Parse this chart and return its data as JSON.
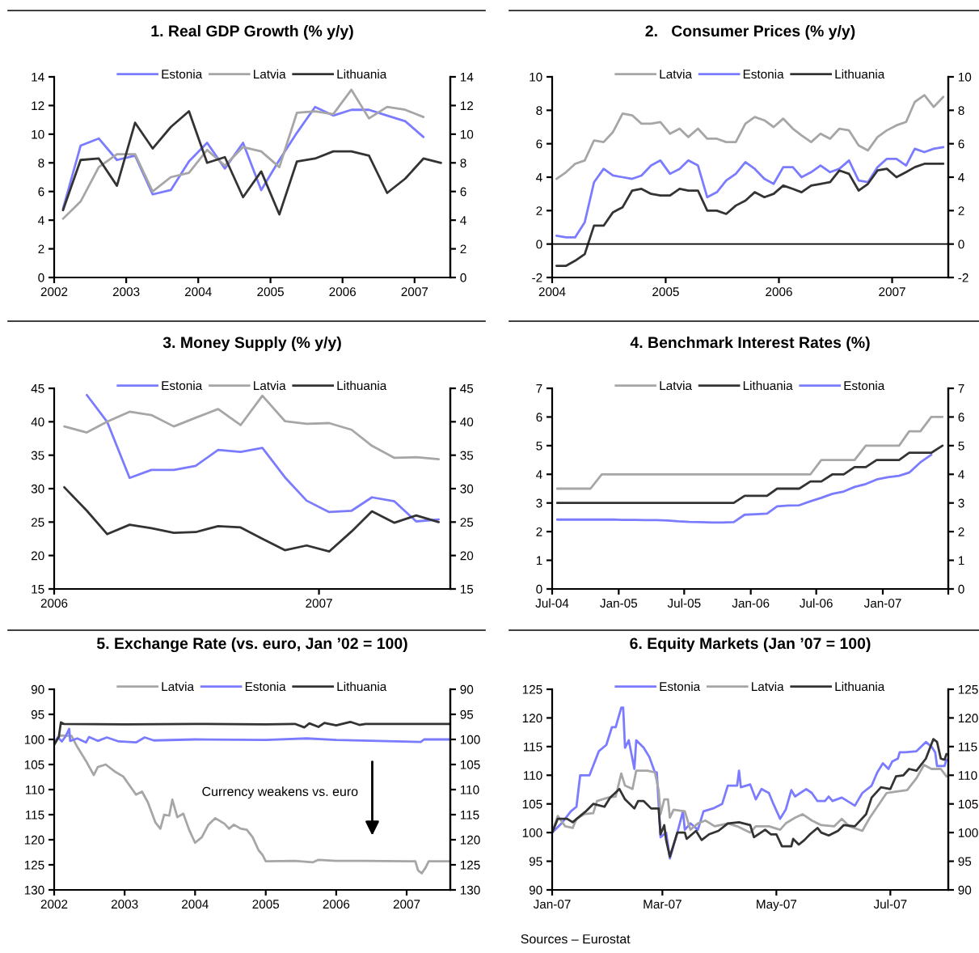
{
  "chart_data": [
    {
      "type": "line",
      "title": "1. Real GDP Growth (% y/y)",
      "x": [
        "2002-02-15",
        "2002-05-15",
        "2002-08-15",
        "2002-11-15",
        "2003-02-15",
        "2003-05-15",
        "2003-08-15",
        "2003-11-15",
        "2004-02-15",
        "2004-05-15",
        "2004-08-15",
        "2004-11-15",
        "2005-02-15",
        "2005-05-15",
        "2005-08-15",
        "2005-11-15",
        "2006-02-15",
        "2006-05-15",
        "2006-08-15",
        "2006-11-15",
        "2007-02-15",
        "2007-05-15"
      ],
      "series": [
        {
          "name": "Estonia",
          "color": "#7b7bff",
          "values": [
            4.8,
            9.2,
            9.7,
            8.2,
            8.5,
            5.8,
            6.1,
            8.1,
            9.4,
            7.6,
            9.4,
            6.1,
            8.2,
            10.1,
            11.9,
            11.3,
            11.7,
            11.7,
            11.3,
            10.9,
            9.8,
            null
          ]
        },
        {
          "name": "Latvia",
          "color": "#a6a6a6",
          "values": [
            4.1,
            5.3,
            7.7,
            8.6,
            8.6,
            6.0,
            7.0,
            7.3,
            8.9,
            7.8,
            9.1,
            8.8,
            7.7,
            11.5,
            11.6,
            11.4,
            13.1,
            11.1,
            11.9,
            11.7,
            11.2,
            null
          ]
        },
        {
          "name": "Lithuania",
          "color": "#333333",
          "values": [
            4.7,
            8.2,
            8.3,
            6.4,
            10.8,
            9.0,
            10.5,
            11.6,
            8.0,
            8.4,
            5.6,
            7.4,
            4.4,
            8.1,
            8.3,
            8.8,
            8.8,
            8.5,
            5.9,
            6.9,
            8.3,
            8.0
          ]
        }
      ],
      "xlim": [
        "2002-01-01",
        "2007-07-01"
      ],
      "xticks": [
        {
          "value": "2002-01-01",
          "label": "2002"
        },
        {
          "value": "2003-01-01",
          "label": "2003"
        },
        {
          "value": "2004-01-01",
          "label": "2004"
        },
        {
          "value": "2005-01-01",
          "label": "2005"
        },
        {
          "value": "2006-01-01",
          "label": "2006"
        },
        {
          "value": "2007-01-01",
          "label": "2007"
        }
      ],
      "ylim": [
        0,
        14
      ],
      "yticks": [
        0,
        2,
        4,
        6,
        8,
        10,
        12,
        14
      ],
      "y2lim": [
        0,
        14
      ],
      "y2ticks": [
        0,
        2,
        4,
        6,
        8,
        10,
        12,
        14
      ],
      "legend": "top"
    },
    {
      "type": "line",
      "title": "2.   Consumer Prices (% y/y)",
      "x": [
        "2004-01-15",
        "2004-02-15",
        "2004-03-15",
        "2004-04-15",
        "2004-05-15",
        "2004-06-15",
        "2004-07-15",
        "2004-08-15",
        "2004-09-15",
        "2004-10-15",
        "2004-11-15",
        "2004-12-15",
        "2005-01-15",
        "2005-02-15",
        "2005-03-15",
        "2005-04-15",
        "2005-05-15",
        "2005-06-15",
        "2005-07-15",
        "2005-08-15",
        "2005-09-15",
        "2005-10-15",
        "2005-11-15",
        "2005-12-15",
        "2006-01-15",
        "2006-02-15",
        "2006-03-15",
        "2006-04-15",
        "2006-05-15",
        "2006-06-15",
        "2006-07-15",
        "2006-08-15",
        "2006-09-15",
        "2006-10-15",
        "2006-11-15",
        "2006-12-15",
        "2007-01-15",
        "2007-02-15",
        "2007-03-15",
        "2007-04-15",
        "2007-05-15",
        "2007-06-15"
      ],
      "series": [
        {
          "name": "Latvia",
          "color": "#a6a6a6",
          "values": [
            3.9,
            4.3,
            4.8,
            5.0,
            6.2,
            6.1,
            6.7,
            7.8,
            7.7,
            7.2,
            7.2,
            7.3,
            6.6,
            6.9,
            6.4,
            6.9,
            6.3,
            6.3,
            6.1,
            6.1,
            7.2,
            7.6,
            7.4,
            7.0,
            7.5,
            6.9,
            6.5,
            6.1,
            6.6,
            6.3,
            6.9,
            6.8,
            5.9,
            5.6,
            6.4,
            6.8,
            7.1,
            7.3,
            8.5,
            8.9,
            8.2,
            8.8
          ]
        },
        {
          "name": "Estonia",
          "color": "#7b7bff",
          "values": [
            0.5,
            0.4,
            0.4,
            1.3,
            3.7,
            4.5,
            4.1,
            4.0,
            3.9,
            4.1,
            4.7,
            5.0,
            4.2,
            4.5,
            5.0,
            4.7,
            2.8,
            3.1,
            3.8,
            4.2,
            4.9,
            4.5,
            3.9,
            3.6,
            4.6,
            4.6,
            4.0,
            4.3,
            4.7,
            4.3,
            4.5,
            5.0,
            3.8,
            3.7,
            4.6,
            5.1,
            5.1,
            4.7,
            5.7,
            5.5,
            5.7,
            5.8
          ]
        },
        {
          "name": "Lithuania",
          "color": "#333333",
          "values": [
            -1.3,
            -1.3,
            -1.0,
            -0.6,
            1.1,
            1.1,
            1.9,
            2.2,
            3.2,
            3.3,
            3.0,
            2.9,
            2.9,
            3.3,
            3.2,
            3.2,
            2.0,
            2.0,
            1.8,
            2.3,
            2.6,
            3.1,
            2.8,
            3.0,
            3.5,
            3.3,
            3.1,
            3.5,
            3.6,
            3.7,
            4.4,
            4.2,
            3.2,
            3.6,
            4.4,
            4.5,
            4.0,
            4.3,
            4.6,
            4.8,
            4.8,
            4.8
          ]
        }
      ],
      "xlim": [
        "2004-01-01",
        "2007-07-01"
      ],
      "xticks": [
        {
          "value": "2004-01-01",
          "label": "2004"
        },
        {
          "value": "2005-01-01",
          "label": "2005"
        },
        {
          "value": "2006-01-01",
          "label": "2006"
        },
        {
          "value": "2007-01-01",
          "label": "2007"
        }
      ],
      "ylim": [
        -2,
        10
      ],
      "yticks": [
        -2,
        0,
        2,
        4,
        6,
        8,
        10
      ],
      "y2lim": [
        -2,
        10
      ],
      "y2ticks": [
        -2,
        0,
        2,
        4,
        6,
        8,
        10
      ],
      "legend": "top",
      "ref_lines": [
        {
          "axis": "y",
          "value": 0,
          "color": "#000000"
        }
      ]
    },
    {
      "type": "line",
      "title": "3. Money Supply (% y/y)",
      "x": [
        "2006-01-15",
        "2006-02-15",
        "2006-03-15",
        "2006-04-15",
        "2006-05-15",
        "2006-06-15",
        "2006-07-15",
        "2006-08-15",
        "2006-09-15",
        "2006-10-15",
        "2006-11-15",
        "2006-12-15",
        "2007-01-15",
        "2007-02-15",
        "2007-03-15",
        "2007-04-15",
        "2007-05-15",
        "2007-06-15"
      ],
      "series": [
        {
          "name": "Estonia",
          "color": "#7b7bff",
          "values": [
            null,
            44.0,
            40.0,
            31.6,
            32.8,
            32.8,
            33.4,
            35.8,
            35.5,
            36.1,
            31.7,
            28.2,
            26.5,
            26.7,
            28.7,
            28.1,
            25.1,
            25.4
          ]
        },
        {
          "name": "Latvia",
          "color": "#a6a6a6",
          "values": [
            39.3,
            38.4,
            40.0,
            41.5,
            41.0,
            39.3,
            40.6,
            41.9,
            39.5,
            43.9,
            40.1,
            39.7,
            39.8,
            38.8,
            36.4,
            34.6,
            34.7,
            34.4
          ]
        },
        {
          "name": "Lithuania",
          "color": "#333333",
          "values": [
            30.2,
            26.7,
            23.2,
            24.6,
            24.1,
            23.4,
            23.5,
            24.4,
            24.2,
            22.5,
            20.8,
            21.5,
            20.6,
            23.6,
            26.6,
            24.9,
            26.0,
            25.0
          ]
        }
      ],
      "xlim": [
        "2006-01-01",
        "2007-07-01"
      ],
      "xticks": [
        {
          "value": "2006-01-01",
          "label": "2006"
        },
        {
          "value": "2007-01-01",
          "label": "2007"
        }
      ],
      "ylim": [
        15,
        45
      ],
      "yticks": [
        15,
        20,
        25,
        30,
        35,
        40,
        45
      ],
      "y2lim": [
        15,
        45
      ],
      "y2ticks": [
        15,
        20,
        25,
        30,
        35,
        40,
        45
      ],
      "legend": "top"
    },
    {
      "type": "line",
      "title": "4. Benchmark Interest Rates (%)",
      "x": [
        "2004-07-15",
        "2004-08-15",
        "2004-09-15",
        "2004-10-15",
        "2004-11-15",
        "2004-12-15",
        "2005-01-15",
        "2005-02-15",
        "2005-03-15",
        "2005-04-15",
        "2005-05-15",
        "2005-06-15",
        "2005-07-15",
        "2005-08-15",
        "2005-09-15",
        "2005-10-15",
        "2005-11-15",
        "2005-12-15",
        "2006-01-15",
        "2006-02-15",
        "2006-03-15",
        "2006-04-15",
        "2006-05-15",
        "2006-06-15",
        "2006-07-15",
        "2006-08-15",
        "2006-09-15",
        "2006-10-15",
        "2006-11-15",
        "2006-12-15",
        "2007-01-15",
        "2007-02-15",
        "2007-03-15",
        "2007-04-15",
        "2007-05-15",
        "2007-06-15"
      ],
      "series": [
        {
          "name": "Latvia",
          "color": "#a6a6a6",
          "values": [
            3.5,
            3.5,
            3.5,
            3.5,
            4.0,
            4.0,
            4.0,
            4.0,
            4.0,
            4.0,
            4.0,
            4.0,
            4.0,
            4.0,
            4.0,
            4.0,
            4.0,
            4.0,
            4.0,
            4.0,
            4.0,
            4.0,
            4.0,
            4.0,
            4.5,
            4.5,
            4.5,
            4.5,
            5.0,
            5.0,
            5.0,
            5.0,
            5.5,
            5.5,
            6.0,
            6.0
          ]
        },
        {
          "name": "Lithuania",
          "color": "#333333",
          "values": [
            3.0,
            3.0,
            3.0,
            3.0,
            3.0,
            3.0,
            3.0,
            3.0,
            3.0,
            3.0,
            3.0,
            3.0,
            3.0,
            3.0,
            3.0,
            3.0,
            3.0,
            3.25,
            3.25,
            3.25,
            3.5,
            3.5,
            3.5,
            3.75,
            3.75,
            4.0,
            4.0,
            4.25,
            4.25,
            4.5,
            4.5,
            4.5,
            4.75,
            4.75,
            4.75,
            5.0
          ]
        },
        {
          "name": "Estonia",
          "color": "#7b7bff",
          "values": [
            2.42,
            2.42,
            2.42,
            2.42,
            2.42,
            2.42,
            2.41,
            2.41,
            2.4,
            2.4,
            2.39,
            2.36,
            2.34,
            2.33,
            2.32,
            2.32,
            2.33,
            2.59,
            2.61,
            2.63,
            2.88,
            2.91,
            2.92,
            3.06,
            3.18,
            3.32,
            3.4,
            3.56,
            3.66,
            3.82,
            3.9,
            3.95,
            4.06,
            4.42,
            4.68,
            null
          ]
        }
      ],
      "xlim": [
        "2004-07-01",
        "2007-07-01"
      ],
      "xticks": [
        {
          "value": "2004-07-01",
          "label": "Jul-04"
        },
        {
          "value": "2005-01-01",
          "label": "Jan-05"
        },
        {
          "value": "2005-07-01",
          "label": "Jul-05"
        },
        {
          "value": "2006-01-01",
          "label": "Jan-06"
        },
        {
          "value": "2006-07-01",
          "label": "Jul-06"
        },
        {
          "value": "2007-01-01",
          "label": "Jan-07"
        },
        {
          "value": "2007-07-01",
          "label": null
        }
      ],
      "ylim": [
        0,
        7
      ],
      "yticks": [
        0,
        1,
        2,
        3,
        4,
        5,
        6,
        7
      ],
      "y2lim": [
        0,
        7
      ],
      "y2ticks": [
        0,
        1,
        2,
        3,
        4,
        5,
        6,
        7
      ],
      "legend": "top"
    },
    {
      "type": "line",
      "title": "5. Exchange Rate (vs. euro, Jan ’02 = 100)",
      "series": [
        {
          "name": "Latvia",
          "color": "#a6a6a6",
          "x": [
            "2002-01-02",
            "2002-02-01",
            "2002-04-01",
            "2002-05-01",
            "2002-06-15",
            "2002-07-25",
            "2002-08-15",
            "2002-09-25",
            "2002-11-15",
            "2002-12-25",
            "2003-03-01",
            "2003-04-01",
            "2003-05-01",
            "2003-06-10",
            "2003-07-05",
            "2003-07-25",
            "2003-08-20",
            "2003-09-05",
            "2003-10-01",
            "2003-11-01",
            "2003-12-01",
            "2004-01-01",
            "2004-02-05",
            "2004-03-10",
            "2004-04-15",
            "2004-06-01",
            "2004-06-25",
            "2004-07-20",
            "2004-08-25",
            "2004-09-25",
            "2004-10-25",
            "2004-11-25",
            "2004-12-15",
            "2005-01-01",
            "2005-06-01",
            "2005-09-01",
            "2005-10-01",
            "2006-01-01",
            "2006-06-01",
            "2007-01-01",
            "2007-02-15",
            "2007-03-01",
            "2007-03-20",
            "2007-04-10",
            "2007-04-25",
            "2007-08-15"
          ],
          "values": [
            100.5,
            99.2,
            99.3,
            101.5,
            104.3,
            107.1,
            105.5,
            105.0,
            106.5,
            107.4,
            111.0,
            110.4,
            112.5,
            116.6,
            117.8,
            115.0,
            115.2,
            112.0,
            115.5,
            114.8,
            118.0,
            120.6,
            119.5,
            117.0,
            115.7,
            116.8,
            117.8,
            117.0,
            117.8,
            118.0,
            119.5,
            122.1,
            123.0,
            124.3,
            124.2,
            124.5,
            124.0,
            124.2,
            124.2,
            124.3,
            124.3,
            126.1,
            126.7,
            125.5,
            124.3,
            124.3
          ]
        },
        {
          "name": "Estonia",
          "color": "#7b7bff",
          "x": [
            "2002-01-02",
            "2002-01-20",
            "2002-02-10",
            "2002-03-01",
            "2002-03-20",
            "2002-03-25",
            "2002-05-01",
            "2002-06-15",
            "2002-07-01",
            "2002-08-15",
            "2002-10-01",
            "2002-12-01",
            "2003-03-01",
            "2003-04-15",
            "2003-06-01",
            "2004-01-01",
            "2005-01-01",
            "2005-08-01",
            "2006-01-01",
            "2007-03-15",
            "2007-04-01",
            "2007-08-15"
          ],
          "values": [
            100.8,
            99.6,
            100.4,
            99.4,
            97.9,
            100.3,
            99.8,
            100.6,
            99.5,
            100.3,
            99.6,
            100.4,
            100.6,
            99.6,
            100.2,
            100.0,
            100.1,
            99.8,
            100.1,
            100.5,
            100.0,
            100.0
          ]
        },
        {
          "name": "Lithuania",
          "color": "#333333",
          "x": [
            "2002-01-02",
            "2002-01-25",
            "2002-02-05",
            "2002-02-20",
            "2003-01-01",
            "2004-01-01",
            "2005-01-01",
            "2005-06-01",
            "2005-07-20",
            "2005-08-15",
            "2005-10-01",
            "2005-11-01",
            "2006-01-01",
            "2006-03-15",
            "2006-05-01",
            "2006-06-01",
            "2007-08-15"
          ],
          "values": [
            101.0,
            99.5,
            96.6,
            96.9,
            97.0,
            96.9,
            97.0,
            96.9,
            97.6,
            96.8,
            97.5,
            96.7,
            97.2,
            96.5,
            97.1,
            96.9,
            96.9
          ]
        }
      ],
      "xlim": [
        "2002-01-01",
        "2007-08-15"
      ],
      "xticks": [
        {
          "value": "2002-01-01",
          "label": "2002"
        },
        {
          "value": "2003-01-01",
          "label": "2003"
        },
        {
          "value": "2004-01-01",
          "label": "2004"
        },
        {
          "value": "2005-01-01",
          "label": "2005"
        },
        {
          "value": "2006-01-01",
          "label": "2006"
        },
        {
          "value": "2007-01-01",
          "label": "2007"
        }
      ],
      "ylim": [
        130,
        90
      ],
      "yticks": [
        90,
        95,
        100,
        105,
        110,
        115,
        120,
        125,
        130
      ],
      "y2lim": [
        130,
        90
      ],
      "y2ticks": [
        90,
        95,
        100,
        105,
        110,
        115,
        120,
        125,
        130
      ],
      "legend": "top",
      "annotations": [
        "Currency weakens vs. euro"
      ]
    },
    {
      "type": "line",
      "title": "6. Equity Markets (Jan ’07 = 100)",
      "series": [
        {
          "name": "Estonia",
          "color": "#7b7bff",
          "x": [
            "2007-01-01",
            "2007-01-06",
            "2007-01-11",
            "2007-01-14",
            "2007-01-16",
            "2007-01-21",
            "2007-01-26",
            "2007-01-30",
            "2007-02-02",
            "2007-02-04",
            "2007-02-07",
            "2007-02-08",
            "2007-02-09",
            "2007-02-11",
            "2007-02-14",
            "2007-02-15",
            "2007-02-19",
            "2007-02-22",
            "2007-02-25",
            "2007-02-26",
            "2007-02-28",
            "2007-03-03",
            "2007-03-05",
            "2007-03-09",
            "2007-03-12",
            "2007-03-13",
            "2007-03-16",
            "2007-03-20",
            "2007-03-23",
            "2007-03-28",
            "2007-04-02",
            "2007-04-05",
            "2007-04-10",
            "2007-04-11",
            "2007-04-12",
            "2007-04-17",
            "2007-04-20",
            "2007-04-23",
            "2007-04-27",
            "2007-04-29",
            "2007-05-03",
            "2007-05-06",
            "2007-05-09",
            "2007-05-11",
            "2007-05-17",
            "2007-05-20",
            "2007-05-23",
            "2007-05-27",
            "2007-05-29",
            "2007-05-31",
            "2007-06-05",
            "2007-06-08",
            "2007-06-12",
            "2007-06-16",
            "2007-06-21",
            "2007-06-24",
            "2007-06-27",
            "2007-06-30",
            "2007-07-02",
            "2007-07-05",
            "2007-07-06",
            "2007-07-09",
            "2007-07-15",
            "2007-07-20",
            "2007-07-23",
            "2007-07-25",
            "2007-07-26",
            "2007-07-30",
            "2007-07-31"
          ],
          "values": [
            100,
            101.6,
            103.7,
            104.5,
            110.0,
            110.0,
            114.2,
            115.3,
            118.4,
            118.4,
            121.8,
            121.8,
            114.8,
            116.1,
            111.1,
            116.1,
            114.8,
            113.2,
            110.5,
            110.5,
            99.2,
            100.0,
            95.5,
            100.0,
            103.7,
            100.5,
            101.6,
            100.5,
            103.7,
            104.2,
            105.0,
            108.2,
            108.2,
            110.8,
            107.9,
            108.4,
            105.8,
            107.6,
            106.9,
            105.3,
            102.4,
            104.0,
            107.4,
            106.3,
            107.6,
            106.9,
            105.5,
            105.5,
            106.3,
            105.5,
            106.1,
            105.5,
            104.7,
            106.9,
            108.2,
            110.5,
            112.1,
            111.1,
            112.4,
            112.9,
            114.0,
            114.0,
            114.2,
            115.8,
            115.0,
            114.0,
            111.6,
            111.6,
            112.7
          ]
        },
        {
          "name": "Latvia",
          "color": "#a6a6a6",
          "x": [
            "2007-01-01",
            "2007-01-04",
            "2007-01-08",
            "2007-01-12",
            "2007-01-14",
            "2007-01-18",
            "2007-01-23",
            "2007-01-25",
            "2007-01-31",
            "2007-02-04",
            "2007-02-07",
            "2007-02-09",
            "2007-02-13",
            "2007-02-15",
            "2007-02-21",
            "2007-02-25",
            "2007-02-27",
            "2007-02-28",
            "2007-03-02",
            "2007-03-04",
            "2007-03-05",
            "2007-03-07",
            "2007-03-13",
            "2007-03-16",
            "2007-03-20",
            "2007-03-24",
            "2007-03-29",
            "2007-04-05",
            "2007-04-10",
            "2007-04-17",
            "2007-04-20",
            "2007-04-27",
            "2007-05-03",
            "2007-05-06",
            "2007-05-11",
            "2007-05-15",
            "2007-05-20",
            "2007-05-25",
            "2007-06-01",
            "2007-06-05",
            "2007-06-09",
            "2007-06-16",
            "2007-06-20",
            "2007-06-24",
            "2007-06-29",
            "2007-07-03",
            "2007-07-10",
            "2007-07-15",
            "2007-07-19",
            "2007-07-23",
            "2007-07-28",
            "2007-07-31"
          ],
          "values": [
            100,
            102.9,
            101.1,
            100.8,
            102.4,
            103.2,
            103.4,
            105.5,
            106.1,
            106.3,
            110.3,
            108.2,
            107.6,
            110.8,
            110.8,
            110.5,
            107.4,
            103.2,
            105.8,
            105.8,
            102.6,
            104.0,
            103.7,
            100.5,
            101.6,
            102.1,
            101.1,
            101.6,
            101.1,
            100.0,
            101.1,
            101.1,
            100.5,
            101.6,
            102.6,
            103.2,
            102.1,
            101.3,
            101.1,
            102.4,
            101.1,
            100.3,
            102.6,
            104.5,
            106.9,
            107.1,
            107.4,
            109.5,
            111.8,
            111.1,
            111.1,
            109.8
          ]
        },
        {
          "name": "Lithuania",
          "color": "#333333",
          "x": [
            "2007-01-01",
            "2007-01-04",
            "2007-01-09",
            "2007-01-12",
            "2007-01-16",
            "2007-01-19",
            "2007-01-23",
            "2007-01-29",
            "2007-02-01",
            "2007-02-06",
            "2007-02-09",
            "2007-02-14",
            "2007-02-16",
            "2007-02-19",
            "2007-02-23",
            "2007-02-27",
            "2007-02-28",
            "2007-03-02",
            "2007-03-03",
            "2007-03-05",
            "2007-03-09",
            "2007-03-13",
            "2007-03-14",
            "2007-03-19",
            "2007-03-22",
            "2007-03-26",
            "2007-03-31",
            "2007-04-05",
            "2007-04-11",
            "2007-04-17",
            "2007-04-19",
            "2007-04-25",
            "2007-04-28",
            "2007-05-01",
            "2007-05-04",
            "2007-05-09",
            "2007-05-10",
            "2007-05-13",
            "2007-05-16",
            "2007-05-19",
            "2007-05-23",
            "2007-05-25",
            "2007-05-29",
            "2007-06-03",
            "2007-06-06",
            "2007-06-12",
            "2007-06-14",
            "2007-06-18",
            "2007-06-21",
            "2007-06-26",
            "2007-07-01",
            "2007-07-04",
            "2007-07-08",
            "2007-07-11",
            "2007-07-15",
            "2007-07-20",
            "2007-07-24",
            "2007-07-26",
            "2007-07-28",
            "2007-07-30",
            "2007-07-31"
          ],
          "values": [
            100,
            102.4,
            102.4,
            101.8,
            102.9,
            103.7,
            105.0,
            104.5,
            106.1,
            107.6,
            105.8,
            104.2,
            105.5,
            105.5,
            104.2,
            104.2,
            99.7,
            101.3,
            98.7,
            95.8,
            100.0,
            100.0,
            98.9,
            100.3,
            98.7,
            99.7,
            100.3,
            101.6,
            101.8,
            101.3,
            99.2,
            100.5,
            99.7,
            99.7,
            97.6,
            97.6,
            98.9,
            97.9,
            98.7,
            99.7,
            100.8,
            100.0,
            99.5,
            100.3,
            101.3,
            101.1,
            101.8,
            103.2,
            106.1,
            107.9,
            107.6,
            109.8,
            110.0,
            111.1,
            110.8,
            112.9,
            116.3,
            115.8,
            112.9,
            112.7,
            113.7
          ]
        }
      ],
      "xlim": [
        "2007-01-01",
        "2007-08-01"
      ],
      "xticks": [
        {
          "value": "2007-01-01",
          "label": "Jan-07"
        },
        {
          "value": "2007-03-01",
          "label": "Mar-07"
        },
        {
          "value": "2007-05-01",
          "label": "May-07"
        },
        {
          "value": "2007-07-01",
          "label": "Jul-07"
        }
      ],
      "ylim": [
        90,
        125
      ],
      "yticks": [
        90,
        95,
        100,
        105,
        110,
        115,
        120,
        125
      ],
      "y2lim": [
        90,
        125
      ],
      "y2ticks": [
        90,
        95,
        100,
        105,
        110,
        115,
        120,
        125
      ],
      "legend": "top",
      "annotations": [
        "Sources – Eurostat"
      ]
    }
  ]
}
